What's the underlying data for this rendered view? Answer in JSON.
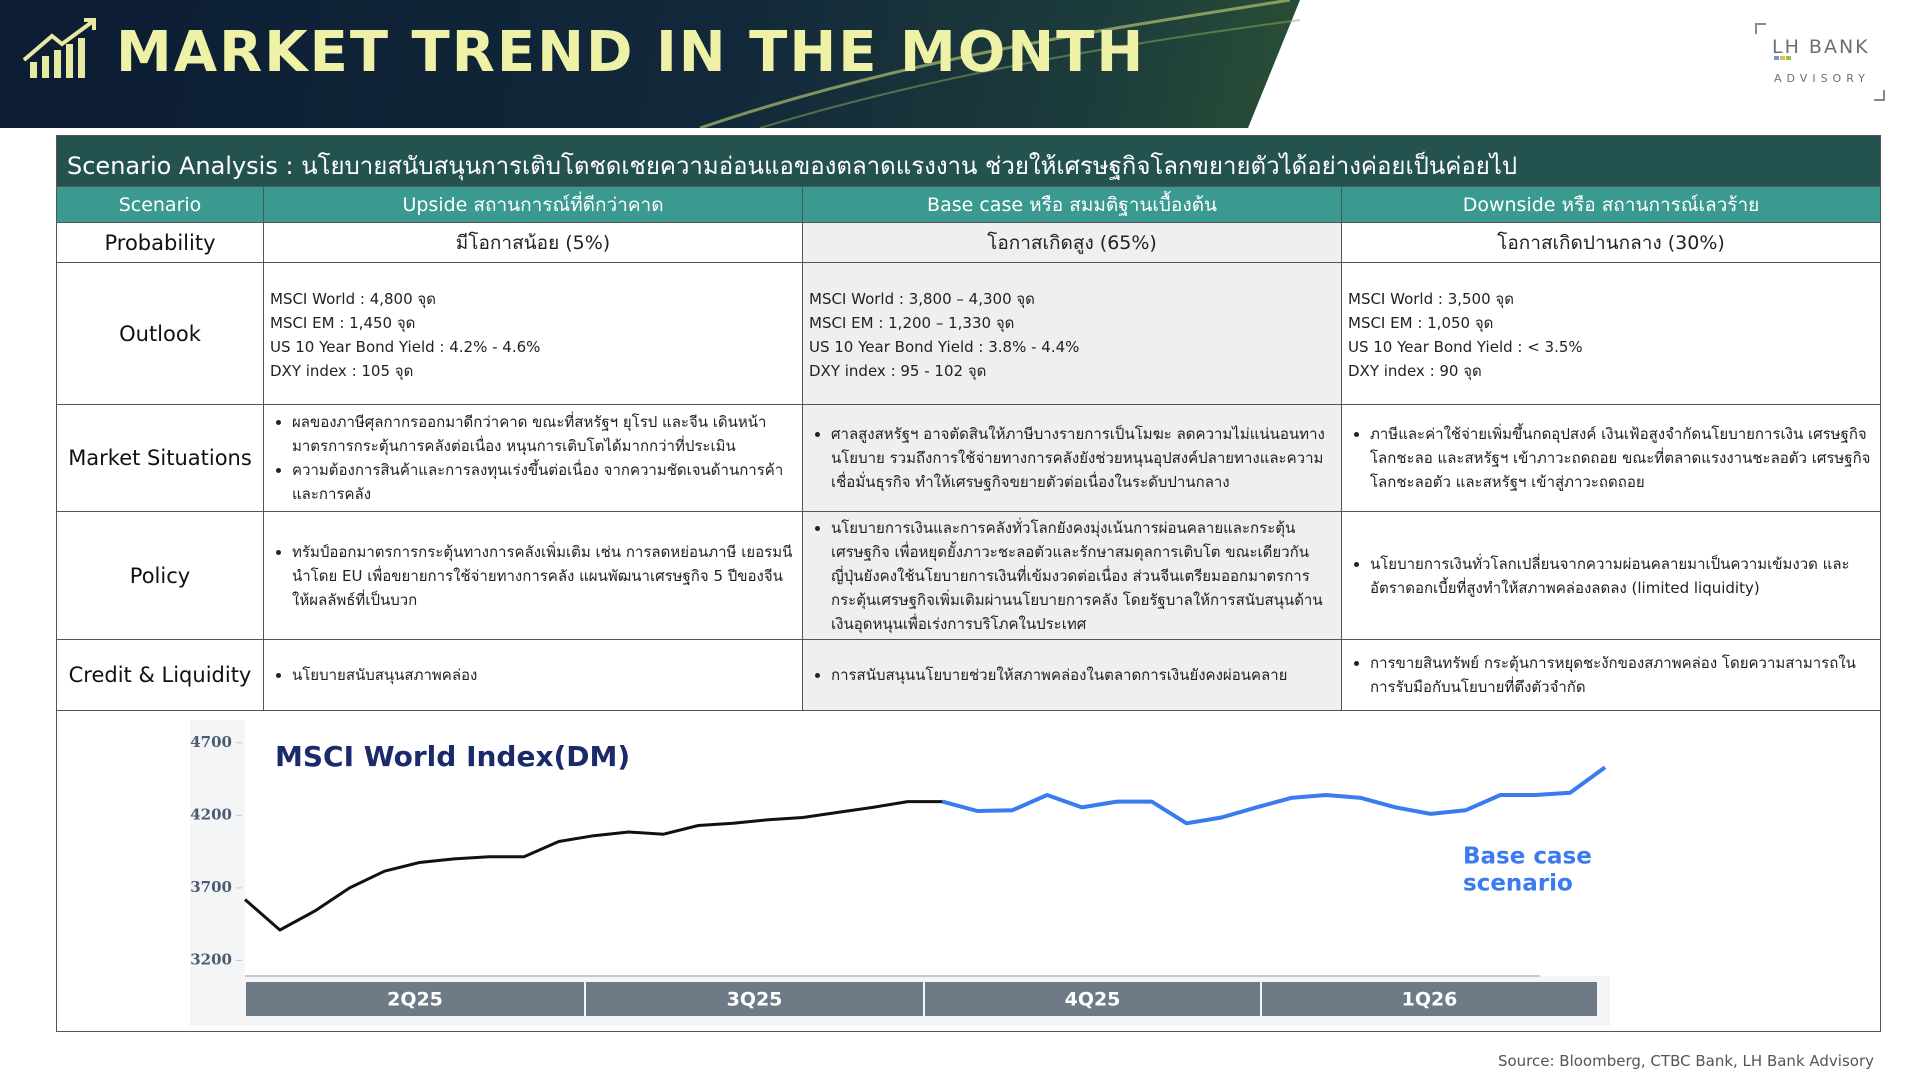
{
  "header": {
    "title": "MARKET TREND IN THE MONTH",
    "logo": "LH BANK",
    "logo_sub": "ADVISORY"
  },
  "table": {
    "caption": "Scenario Analysis : นโยบายสนับสนุนการเติบโตชดเชยความอ่อนแอของตลาดแรงงาน ช่วยให้เศรษฐกิจโลกขยายตัวได้อย่างค่อยเป็นค่อยไป",
    "columns": [
      "Scenario",
      "Upside สถานการณ์ที่ดีกว่าคาด",
      "Base case หรือ สมมติฐานเบื้องต้น",
      "Downside หรือ สถานการณ์เลวร้าย"
    ],
    "rows": [
      {
        "label": "Probability",
        "cells": [
          {
            "text": "มีโอกาสน้อย (5%)"
          },
          {
            "text": "โอกาสเกิดสูง (65%)"
          },
          {
            "text": "โอกาสเกิดปานกลาง (30%)"
          }
        ]
      },
      {
        "label": "Outlook",
        "cells": [
          {
            "lines": [
              "MSCI World : 4,800 จุด",
              "MSCI EM : 1,450 จุด",
              "US 10 Year Bond Yield : 4.2% - 4.6%",
              "DXY index : 105 จุด"
            ]
          },
          {
            "lines": [
              "MSCI World : 3,800 – 4,300 จุด",
              "MSCI EM : 1,200 – 1,330 จุด",
              "US 10 Year Bond Yield : 3.8% - 4.4%",
              "DXY index : 95 - 102 จุด"
            ]
          },
          {
            "lines": [
              "MSCI World : 3,500 จุด",
              "MSCI EM : 1,050 จุด",
              "US 10 Year Bond Yield : < 3.5%",
              "DXY index :  90 จุด"
            ]
          }
        ]
      },
      {
        "label": "Market Situations",
        "cells": [
          {
            "bullets": [
              "ผลของภาษีศุลกากรออกมาดีกว่าคาด ขณะที่สหรัฐฯ ยุโรป และจีน เดินหน้ามาตรการกระตุ้นการคลังต่อเนื่อง หนุนการเติบโตได้มากกว่าที่ประเมิน",
              "ความต้องการสินค้าและการลงทุนเร่งขึ้นต่อเนื่อง จากความชัดเจนด้านการค้าและการคลัง"
            ]
          },
          {
            "bullets": [
              "ศาลสูงสหรัฐฯ อาจตัดสินให้ภาษีบางรายการเป็นโมฆะ ลดความไม่แน่นอนทางนโยบาย รวมถึงการใช้จ่ายทางการคลังยังช่วยหนุนอุปสงค์ปลายทางและความเชื่อมั่นธุรกิจ ทำให้เศรษฐกิจขยายตัวต่อเนื่องในระดับปานกลาง"
            ]
          },
          {
            "bullets": [
              "ภาษีและค่าใช้จ่ายเพิ่มขึ้นกดอุปสงค์ เงินเฟ้อสูงจำกัดนโยบายการเงิน เศรษฐกิจโลกชะลอ และสหรัฐฯ เข้าภาวะถดถอย ขณะที่ตลาดแรงงานชะลอตัว เศรษฐกิจโลกชะลอตัว และสหรัฐฯ เข้าสู่ภาวะถดถอย"
            ]
          }
        ]
      },
      {
        "label": "Policy",
        "cells": [
          {
            "bullets": [
              "ทรัมป์ออกมาตรการกระตุ้นทางการคลังเพิ่มเติม เช่น การลดหย่อนภาษี เยอรมนีนำโดย EU เพื่อขยายการใช้จ่ายทางการคลัง แผนพัฒนาเศรษฐกิจ 5 ปีของจีนให้ผลลัพธ์ที่เป็นบวก"
            ]
          },
          {
            "bullets": [
              "นโยบายการเงินและการคลังทั่วโลกยังคงมุ่งเน้นการผ่อนคลายและกระตุ้นเศรษฐกิจ เพื่อหยุดยั้งภาวะชะลอตัวและรักษาสมดุลการเติบโต ขณะเดียวกันญี่ปุ่นยังคงใช้นโยบายการเงินที่เข้มงวดต่อเนื่อง ส่วนจีนเตรียมออกมาตรการกระตุ้นเศรษฐกิจเพิ่มเติมผ่านนโยบายการคลัง โดยรัฐบาลให้การสนับสนุนด้านเงินอุดหนุนเพื่อเร่งการบริโภคในประเทศ"
            ]
          },
          {
            "bullets": [
              "นโยบายการเงินทั่วโลกเปลี่ยนจากความผ่อนคลายมาเป็นความเข้มงวด และอัตราดอกเบี้ยที่สูงทำให้สภาพคล่องลดลง (limited liquidity)"
            ]
          }
        ]
      },
      {
        "label": "Credit & Liquidity",
        "cells": [
          {
            "bullets": [
              "นโยบายสนับสนุนสภาพคล่อง"
            ]
          },
          {
            "bullets": [
              "การสนับสนุนนโยบายช่วยให้สภาพคล่องในตลาดการเงินยังคงผ่อนคลาย"
            ]
          },
          {
            "bullets": [
              "การขายสินทรัพย์ กระตุ้นการหยุดชะงักของสภาพคล่อง โดยความสามารถในการรับมือกับนโยบายที่ตึงตัวจำกัด"
            ]
          }
        ]
      }
    ]
  },
  "chart_data": {
    "type": "line",
    "title": "MSCI World Index(DM)",
    "quarters": [
      "2Q25",
      "3Q25",
      "4Q25",
      "1Q26"
    ],
    "ylim": [
      3100,
      4850
    ],
    "yticks": [
      3200,
      3700,
      4200,
      4700
    ],
    "annotation": [
      "Base case",
      "scenario"
    ],
    "series": [
      {
        "color": "#111111",
        "values": [
          3620,
          3410,
          3540,
          3700,
          3815,
          3875,
          3900,
          3915,
          3915,
          4020,
          4060,
          4085,
          4070,
          4130,
          4145,
          4170,
          4185,
          4220,
          4255,
          4295,
          4295,
          null,
          null,
          null,
          null,
          null,
          null,
          null,
          null,
          null,
          null,
          null,
          null,
          null,
          null,
          null,
          null,
          null,
          null,
          null
        ]
      },
      {
        "color": "#3a7bf0",
        "values": [
          null,
          null,
          null,
          null,
          null,
          null,
          null,
          null,
          null,
          null,
          null,
          null,
          null,
          null,
          null,
          null,
          null,
          null,
          null,
          null,
          4295,
          4230,
          4235,
          4340,
          4255,
          4295,
          4295,
          4145,
          4185,
          4255,
          4320,
          4340,
          4320,
          4255,
          4210,
          4235,
          4340,
          4340,
          4355,
          4530
        ]
      }
    ]
  },
  "source": "Source: Bloomberg, CTBC Bank, LH Bank Advisory"
}
